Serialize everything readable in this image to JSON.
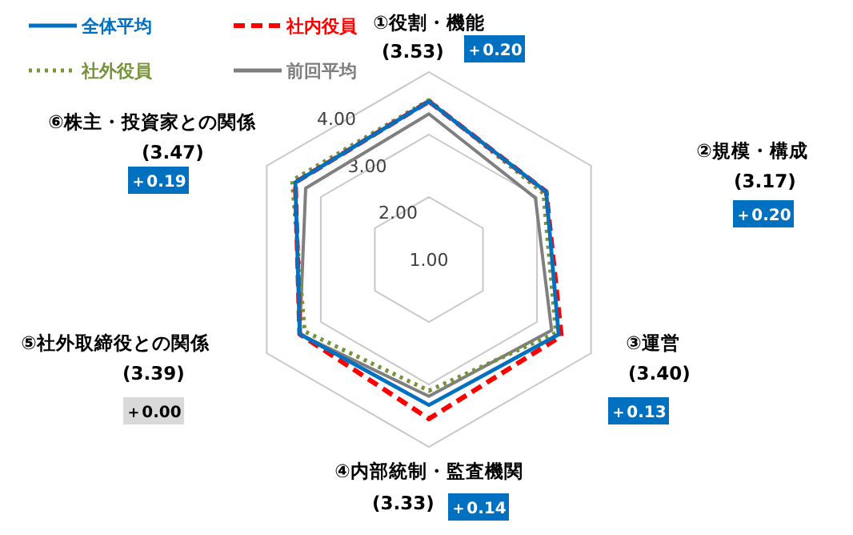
{
  "chart_data": {
    "type": "radar",
    "categories": [
      "①役割・機能",
      "②規模・構成",
      "③運営",
      "④内部統制・監査機関",
      "⑤社外取締役との関係",
      "⑥株主・投資家との関係"
    ],
    "ylim": [
      1,
      4
    ],
    "yticks": [
      {
        "value": 1,
        "label": "1.00"
      },
      {
        "value": 2,
        "label": "2.00"
      },
      {
        "value": 3,
        "label": "3.00"
      },
      {
        "value": 4,
        "label": "4.00"
      }
    ],
    "legend": "top left",
    "grid": true,
    "series": [
      {
        "name": "全体平均",
        "color": "#0070c0",
        "line_style": "solid",
        "values": [
          3.53,
          3.17,
          3.4,
          3.33,
          3.39,
          3.47
        ]
      },
      {
        "name": "社内役員",
        "color": "#ff0000",
        "line_style": "dashed",
        "values": [
          3.53,
          3.17,
          3.45,
          3.55,
          3.39,
          3.47
        ]
      },
      {
        "name": "社外役員",
        "color": "#77933c",
        "line_style": "dotted",
        "values": [
          3.55,
          3.12,
          3.35,
          3.1,
          3.3,
          3.53
        ]
      },
      {
        "name": "前回平均",
        "color": "#7f7f7f",
        "line_style": "solid",
        "values": [
          3.33,
          2.97,
          3.27,
          3.19,
          3.39,
          3.28
        ]
      }
    ],
    "annotations": [
      "(3.53)",
      "＋0.20",
      "(3.17)",
      "＋0.20",
      "(3.40)",
      "＋0.13",
      "(3.33)",
      "＋0.14",
      "(3.39)",
      "＋0.00",
      "(3.47)",
      "＋0.19"
    ]
  }
}
